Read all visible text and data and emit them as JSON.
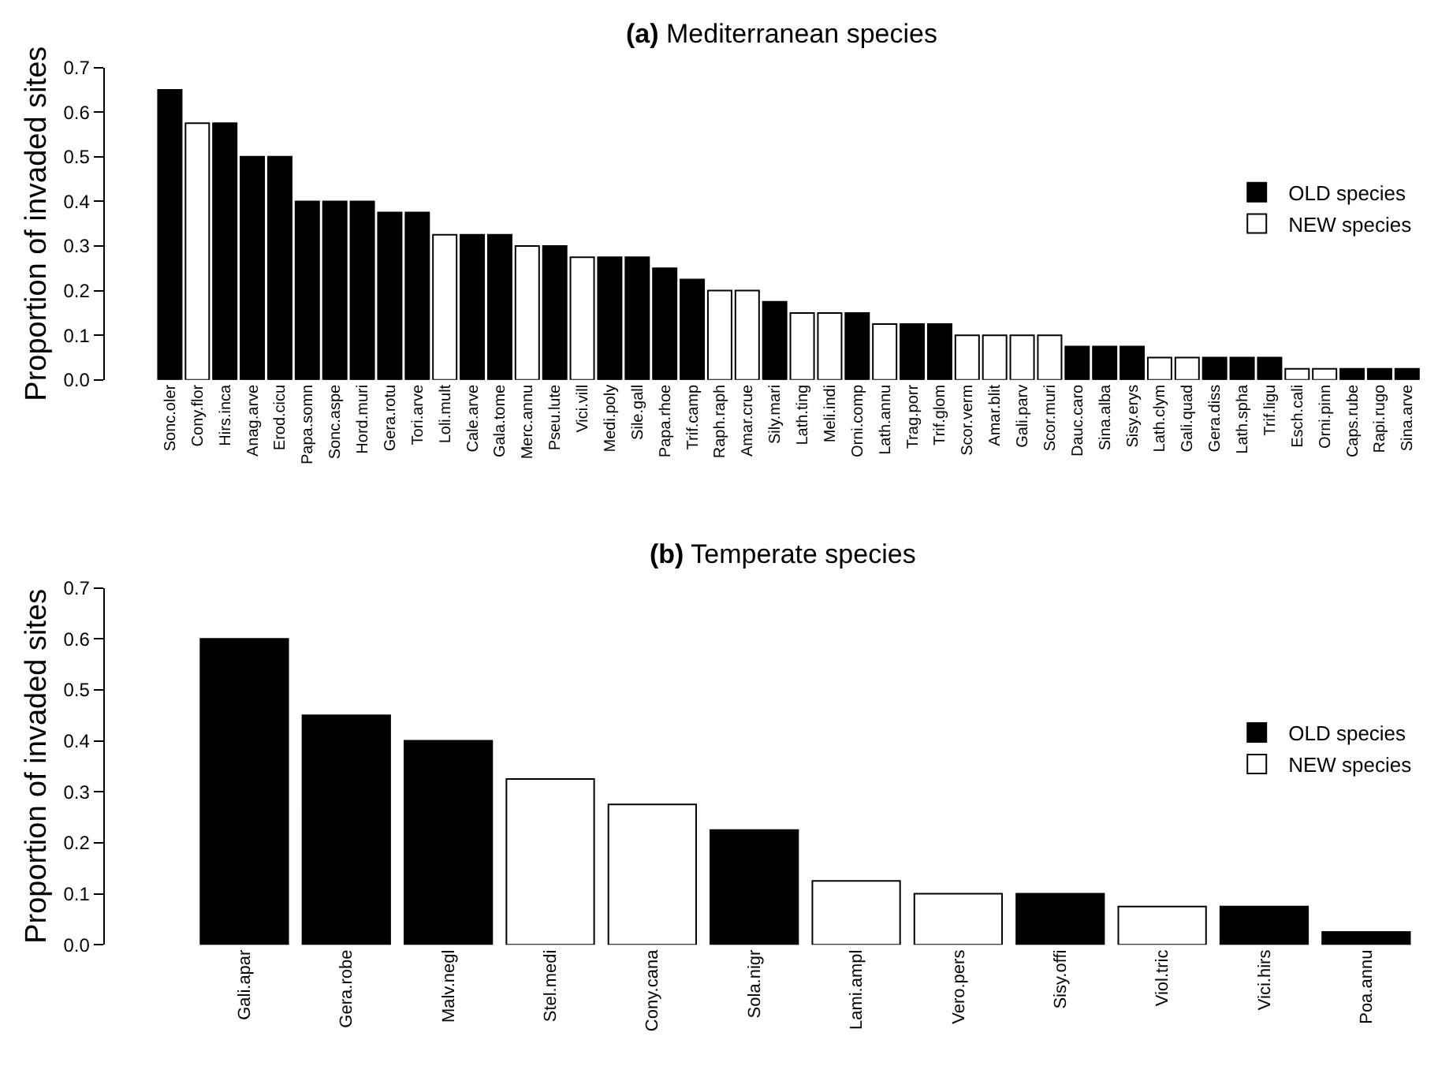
{
  "chart_data": [
    {
      "type": "bar",
      "title": "(a) Mediterranean species",
      "ylabel": "Proportion of invaded sites",
      "categories": [
        "Sonc.oler",
        "Cony.flor",
        "Hirs.inca",
        "Anag.arve",
        "Erod.cicu",
        "Papa.somn",
        "Sonc.aspe",
        "Hord.muri",
        "Gera.rotu",
        "Tori.arve",
        "Loli.mult",
        "Cale.arve",
        "Gala.tome",
        "Merc.annu",
        "Pseu.lute",
        "Vici.vill",
        "Medi.poly",
        "Sile.gall",
        "Papa.rhoe",
        "Trif.camp",
        "Raph.raph",
        "Amar.crue",
        "Sily.mari",
        "Lath.ting",
        "Meli.indi",
        "Orni.comp",
        "Lath.annu",
        "Trag.porr",
        "Trif.glom",
        "Scor.verm",
        "Amar.blit",
        "Gali.parv",
        "Scor.muri",
        "Dauc.caro",
        "Sina.alba",
        "Sisy.erys",
        "Lath.clym",
        "Gali.quad",
        "Gera.diss",
        "Lath.spha",
        "Trif.ligu",
        "Esch.cali",
        "Orni.pinn",
        "Caps.rube",
        "Rapi.rugo",
        "Sina.arve"
      ],
      "series": [
        {
          "name": "OLD species",
          "color": "#000000",
          "values": [
            0.65,
            null,
            0.575,
            0.5,
            0.5,
            0.4,
            0.4,
            0.4,
            0.375,
            0.375,
            null,
            0.325,
            0.325,
            null,
            0.3,
            null,
            0.275,
            0.275,
            0.25,
            0.225,
            null,
            null,
            0.175,
            null,
            null,
            0.15,
            null,
            0.125,
            0.125,
            null,
            null,
            null,
            null,
            0.075,
            0.075,
            0.075,
            null,
            null,
            0.05,
            0.05,
            0.05,
            null,
            null,
            0.025,
            0.025,
            0.025
          ]
        },
        {
          "name": "NEW species",
          "color": "#ffffff",
          "values": [
            null,
            0.575,
            null,
            null,
            null,
            null,
            null,
            null,
            null,
            null,
            0.325,
            null,
            null,
            0.3,
            null,
            0.275,
            null,
            null,
            null,
            null,
            0.2,
            0.2,
            null,
            0.15,
            0.15,
            null,
            0.125,
            null,
            null,
            0.1,
            0.1,
            0.1,
            0.1,
            null,
            null,
            null,
            0.05,
            0.05,
            null,
            null,
            null,
            0.025,
            0.025,
            null,
            null,
            null
          ]
        }
      ],
      "ylim": [
        0,
        0.7
      ],
      "yticks": [
        {
          "value": 0,
          "label": "0.0"
        },
        0.1,
        0.2,
        0.3,
        0.4,
        0.5,
        0.6,
        0.7
      ],
      "legend": "right"
    },
    {
      "type": "bar",
      "title": "(b) Temperate species",
      "ylabel": "Proportion of invaded sites",
      "categories": [
        "Gali.apar",
        "Gera.robe",
        "Malv.negl",
        "Stel.medi",
        "Cony.cana",
        "Sola.nigr",
        "Lami.ampl",
        "Vero.pers",
        "Sisy.offi",
        "Viol.tric",
        "Vici.hirs",
        "Poa.annu"
      ],
      "series": [
        {
          "name": "OLD species",
          "color": "#000000",
          "values": [
            0.6,
            0.45,
            0.4,
            null,
            null,
            0.225,
            null,
            null,
            0.1,
            null,
            0.075,
            0.025
          ]
        },
        {
          "name": "NEW species",
          "color": "#ffffff",
          "values": [
            null,
            null,
            null,
            0.325,
            0.275,
            null,
            0.125,
            0.1,
            null,
            0.075,
            null,
            null
          ]
        }
      ],
      "ylim": [
        0,
        0.7
      ],
      "yticks": [
        {
          "value": 0,
          "label": "0.0"
        },
        0.1,
        0.2,
        0.3,
        0.4,
        0.5,
        0.6,
        0.7
      ],
      "legend": "right"
    }
  ]
}
